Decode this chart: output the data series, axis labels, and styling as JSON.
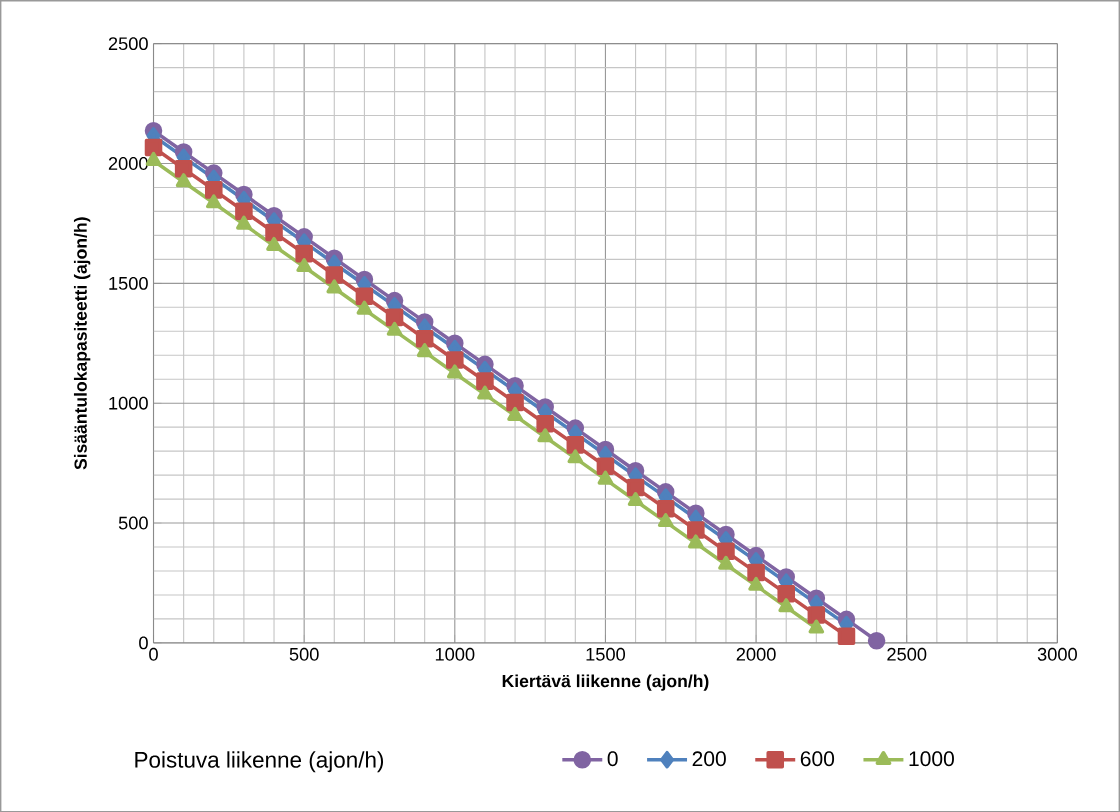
{
  "chart_data": {
    "type": "line",
    "xlabel": "Kiertävä liikenne (ajon/h)",
    "ylabel": "Sisääntulokapasiteetti  (ajon/h)",
    "legend_title": "Poistuva liikenne (ajon/h)",
    "legend": "bottom",
    "grid": true,
    "xlim": [
      0,
      3000
    ],
    "xticks": [
      0,
      500,
      1000,
      1500,
      2000,
      2500,
      3000
    ],
    "ylim": [
      0,
      2500
    ],
    "yticks": [
      0,
      500,
      1000,
      1500,
      2000,
      2500
    ],
    "series": [
      {
        "name": "0",
        "color": "#8064a2",
        "marker": "circle",
        "x": [
          0,
          100,
          200,
          300,
          400,
          500,
          600,
          700,
          800,
          900,
          1000,
          1100,
          1200,
          1300,
          1400,
          1500,
          1600,
          1700,
          1800,
          1900,
          2000,
          2100,
          2200,
          2300,
          2400
        ],
        "values": [
          2137,
          2048,
          1960,
          1871,
          1782,
          1694,
          1605,
          1516,
          1428,
          1339,
          1250,
          1162,
          1073,
          984,
          896,
          807,
          718,
          630,
          541,
          452,
          364,
          275,
          186,
          98,
          9
        ]
      },
      {
        "name": "200",
        "color": "#4f81bd",
        "marker": "diamond",
        "x": [
          0,
          100,
          200,
          300,
          400,
          500,
          600,
          700,
          800,
          900,
          1000,
          1100,
          1200,
          1300,
          1400,
          1500,
          1600,
          1700,
          1800,
          1900,
          2000,
          2100,
          2200,
          2300
        ],
        "values": [
          2115,
          2026,
          1938,
          1849,
          1760,
          1672,
          1583,
          1494,
          1406,
          1317,
          1228,
          1140,
          1051,
          962,
          874,
          785,
          696,
          608,
          519,
          430,
          342,
          253,
          164,
          76
        ]
      },
      {
        "name": "600",
        "color": "#c0504d",
        "marker": "square",
        "x": [
          0,
          100,
          200,
          300,
          400,
          500,
          600,
          700,
          800,
          900,
          1000,
          1100,
          1200,
          1300,
          1400,
          1500,
          1600,
          1700,
          1800,
          1900,
          2000,
          2100,
          2200,
          2300
        ],
        "values": [
          2067,
          1978,
          1890,
          1801,
          1712,
          1624,
          1535,
          1446,
          1358,
          1269,
          1180,
          1092,
          1003,
          914,
          826,
          737,
          648,
          560,
          471,
          382,
          294,
          205,
          116,
          28
        ]
      },
      {
        "name": "1000",
        "color": "#9bbb59",
        "marker": "triangle",
        "x": [
          0,
          100,
          200,
          300,
          400,
          500,
          600,
          700,
          800,
          900,
          1000,
          1100,
          1200,
          1300,
          1400,
          1500,
          1600,
          1700,
          1800,
          1900,
          2000,
          2100,
          2200
        ],
        "values": [
          2012,
          1923,
          1835,
          1746,
          1657,
          1569,
          1480,
          1391,
          1303,
          1214,
          1125,
          1037,
          948,
          859,
          771,
          682,
          593,
          505,
          416,
          327,
          239,
          150,
          61
        ]
      }
    ]
  }
}
